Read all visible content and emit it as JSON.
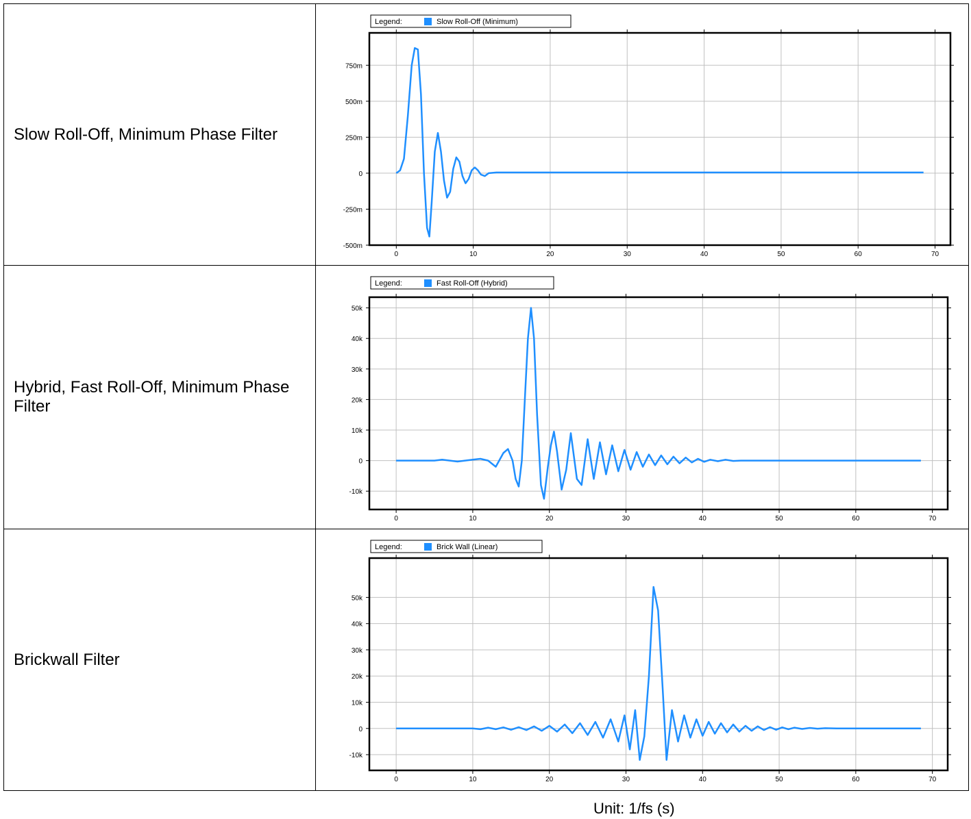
{
  "rows": [
    {
      "label": "Slow Roll-Off, Minimum Phase Filter"
    },
    {
      "label": "Hybrid, Fast Roll-Off, Minimum Phase Filter"
    },
    {
      "label": "Brickwall Filter"
    }
  ],
  "unit_label": "Unit: 1/fs (s)",
  "colors": {
    "series": "#1f8fff",
    "grid": "#c0c0c0",
    "axis": "#000000",
    "legend_swatch": "#1f8fff"
  },
  "chart_data": [
    {
      "type": "line",
      "legend_prefix": "Legend:",
      "legend_placement": "top-left",
      "grid": true,
      "xlim": [
        -3.5,
        72
      ],
      "ylim": [
        -500,
        975
      ],
      "x_ticks": [
        0,
        10,
        20,
        30,
        40,
        50,
        60,
        70
      ],
      "x_tick_labels": [
        "0",
        "10",
        "20",
        "30",
        "40",
        "50",
        "60",
        "70"
      ],
      "y_ticks": [
        -500,
        -250,
        0,
        250,
        500,
        750
      ],
      "y_tick_labels": [
        "-500m",
        "-250m",
        "0",
        "250m",
        "500m",
        "750m"
      ],
      "series": [
        {
          "name": "Slow Roll-Off (Minimum)",
          "points": [
            [
              0,
              0
            ],
            [
              0.5,
              20
            ],
            [
              1,
              100
            ],
            [
              1.5,
              400
            ],
            [
              2,
              750
            ],
            [
              2.4,
              870
            ],
            [
              2.8,
              860
            ],
            [
              3.2,
              550
            ],
            [
              3.6,
              0
            ],
            [
              4.0,
              -380
            ],
            [
              4.3,
              -440
            ],
            [
              4.6,
              -200
            ],
            [
              5.0,
              150
            ],
            [
              5.4,
              280
            ],
            [
              5.8,
              150
            ],
            [
              6.2,
              -50
            ],
            [
              6.6,
              -170
            ],
            [
              7.0,
              -130
            ],
            [
              7.4,
              30
            ],
            [
              7.8,
              110
            ],
            [
              8.2,
              80
            ],
            [
              8.6,
              -20
            ],
            [
              9.0,
              -70
            ],
            [
              9.4,
              -40
            ],
            [
              9.8,
              20
            ],
            [
              10.2,
              40
            ],
            [
              10.6,
              20
            ],
            [
              11.0,
              -10
            ],
            [
              11.5,
              -20
            ],
            [
              12.0,
              0
            ],
            [
              13,
              5
            ],
            [
              68.5,
              5
            ]
          ]
        }
      ]
    },
    {
      "type": "line",
      "legend_prefix": "Legend:",
      "legend_placement": "top-left",
      "grid": true,
      "xlim": [
        -3.5,
        72
      ],
      "ylim": [
        -16000,
        53500
      ],
      "x_ticks": [
        0,
        10,
        20,
        30,
        40,
        50,
        60,
        70
      ],
      "x_tick_labels": [
        "0",
        "10",
        "20",
        "30",
        "40",
        "50",
        "60",
        "70"
      ],
      "y_ticks": [
        -10000,
        0,
        10000,
        20000,
        30000,
        40000,
        50000
      ],
      "y_tick_labels": [
        "-10k",
        "0",
        "10k",
        "20k",
        "30k",
        "40k",
        "50k"
      ],
      "series": [
        {
          "name": "Fast Roll-Off (Hybrid)",
          "points": [
            [
              0,
              0
            ],
            [
              5,
              0
            ],
            [
              6,
              300
            ],
            [
              7,
              0
            ],
            [
              8,
              -300
            ],
            [
              9,
              0
            ],
            [
              10,
              300
            ],
            [
              11,
              600
            ],
            [
              12,
              0
            ],
            [
              13,
              -2000
            ],
            [
              14,
              2500
            ],
            [
              14.6,
              3800
            ],
            [
              15.2,
              0
            ],
            [
              15.6,
              -6000
            ],
            [
              16.0,
              -8500
            ],
            [
              16.4,
              0
            ],
            [
              16.8,
              20000
            ],
            [
              17.2,
              40000
            ],
            [
              17.6,
              50000
            ],
            [
              18.0,
              40000
            ],
            [
              18.4,
              15000
            ],
            [
              18.9,
              -8000
            ],
            [
              19.3,
              -12500
            ],
            [
              19.8,
              -2000
            ],
            [
              20.2,
              5000
            ],
            [
              20.6,
              9500
            ],
            [
              21.0,
              3000
            ],
            [
              21.6,
              -9500
            ],
            [
              22.2,
              -3000
            ],
            [
              22.8,
              9000
            ],
            [
              23.6,
              -6000
            ],
            [
              24.2,
              -8000
            ],
            [
              25.0,
              7000
            ],
            [
              25.8,
              -6000
            ],
            [
              26.6,
              6000
            ],
            [
              27.4,
              -4500
            ],
            [
              28.2,
              5000
            ],
            [
              29.0,
              -3500
            ],
            [
              29.8,
              3500
            ],
            [
              30.6,
              -3000
            ],
            [
              31.4,
              2800
            ],
            [
              32.2,
              -2000
            ],
            [
              33.0,
              2000
            ],
            [
              33.8,
              -1500
            ],
            [
              34.6,
              1700
            ],
            [
              35.4,
              -1200
            ],
            [
              36.2,
              1300
            ],
            [
              37.0,
              -900
            ],
            [
              37.8,
              1000
            ],
            [
              38.6,
              -600
            ],
            [
              39.4,
              600
            ],
            [
              40.2,
              -400
            ],
            [
              41.0,
              300
            ],
            [
              42.0,
              -200
            ],
            [
              43.0,
              300
            ],
            [
              44.0,
              -100
            ],
            [
              45.0,
              0
            ],
            [
              68.5,
              0
            ]
          ]
        }
      ]
    },
    {
      "type": "line",
      "legend_prefix": "Legend:",
      "legend_placement": "top-left",
      "grid": true,
      "xlim": [
        -3.5,
        72
      ],
      "ylim": [
        -16000,
        65000
      ],
      "x_ticks": [
        0,
        10,
        20,
        30,
        40,
        50,
        60,
        70
      ],
      "x_tick_labels": [
        "0",
        "10",
        "20",
        "30",
        "40",
        "50",
        "60",
        "70"
      ],
      "y_ticks": [
        -10000,
        0,
        10000,
        20000,
        30000,
        40000,
        50000
      ],
      "y_tick_labels": [
        "-10k",
        "0",
        "10k",
        "20k",
        "30k",
        "40k",
        "50k"
      ],
      "series": [
        {
          "name": "Brick Wall (Linear)",
          "points": [
            [
              0,
              0
            ],
            [
              10,
              0
            ],
            [
              11,
              -300
            ],
            [
              12,
              300
            ],
            [
              13,
              -300
            ],
            [
              14,
              400
            ],
            [
              15,
              -500
            ],
            [
              16,
              500
            ],
            [
              17,
              -600
            ],
            [
              18,
              800
            ],
            [
              19,
              -900
            ],
            [
              20,
              1000
            ],
            [
              21,
              -1200
            ],
            [
              22,
              1500
            ],
            [
              23,
              -1800
            ],
            [
              24,
              2000
            ],
            [
              25,
              -2500
            ],
            [
              26,
              2500
            ],
            [
              27,
              -3500
            ],
            [
              28,
              3500
            ],
            [
              29,
              -5000
            ],
            [
              29.8,
              5000
            ],
            [
              30.5,
              -8000
            ],
            [
              31.2,
              7000
            ],
            [
              31.8,
              -12000
            ],
            [
              32.4,
              -3000
            ],
            [
              33.0,
              20000
            ],
            [
              33.6,
              54000
            ],
            [
              34.2,
              45000
            ],
            [
              34.8,
              15000
            ],
            [
              35.3,
              -12000
            ],
            [
              36.0,
              7000
            ],
            [
              36.8,
              -5000
            ],
            [
              37.6,
              5000
            ],
            [
              38.4,
              -3500
            ],
            [
              39.2,
              3500
            ],
            [
              40.0,
              -2800
            ],
            [
              40.8,
              2500
            ],
            [
              41.6,
              -2000
            ],
            [
              42.4,
              2000
            ],
            [
              43.2,
              -1500
            ],
            [
              44.0,
              1500
            ],
            [
              44.8,
              -1200
            ],
            [
              45.6,
              1000
            ],
            [
              46.4,
              -900
            ],
            [
              47.2,
              800
            ],
            [
              48.0,
              -600
            ],
            [
              48.8,
              500
            ],
            [
              49.6,
              -500
            ],
            [
              50.4,
              400
            ],
            [
              51.2,
              -300
            ],
            [
              52.0,
              300
            ],
            [
              53,
              -200
            ],
            [
              54,
              200
            ],
            [
              55,
              -100
            ],
            [
              56,
              100
            ],
            [
              57.5,
              0
            ],
            [
              68.5,
              0
            ]
          ]
        }
      ]
    }
  ]
}
